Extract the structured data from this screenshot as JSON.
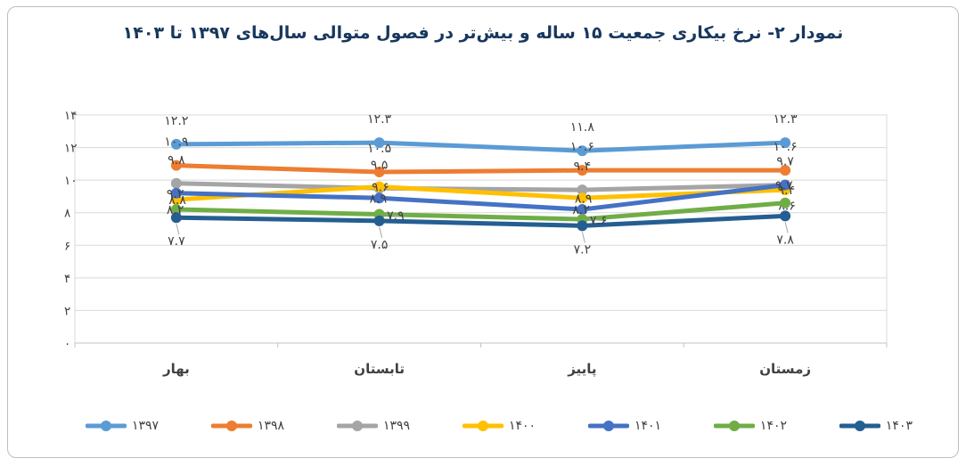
{
  "title": "نمودار ۲- نرخ بیکاری جمعیت ۱۵ ساله و بیش‌تر در فصول متوالی سال‌های ۱۳۹۷ تا ۱۴۰۳",
  "colors": {
    "title": "#17375E",
    "text": "#404040",
    "grid": "#D9D9D9",
    "axis": "#C3C3C3",
    "leader": "#A6A6A6",
    "border": "#BDBDBD",
    "background": "#FFFFFF"
  },
  "chart_data": {
    "type": "line",
    "title": "نمودار ۲- نرخ بیکاری جمعیت ۱۵ ساله و بیش‌تر در فصول متوالی سال‌های ۱۳۹۷ تا ۱۴۰۳",
    "categories": [
      "بهار",
      "تابستان",
      "پاییز",
      "زمستان"
    ],
    "xlabel": "",
    "ylabel": "",
    "ylim": [
      0,
      14
    ],
    "grid": true,
    "legend_position": "bottom",
    "y_axis": {
      "min": 0,
      "max": 14,
      "step": 2,
      "tick_labels": [
        "۰",
        "۲",
        "۴",
        "۶",
        "۸",
        "۱۰",
        "۱۲",
        "۱۴"
      ]
    },
    "series": [
      {
        "name": "۱۳۹۷",
        "color": "#5B9BD5",
        "values": [
          12.2,
          12.3,
          11.8,
          12.3
        ],
        "labels": [
          "۱۲.۲",
          "۱۲.۳",
          "۱۱.۸",
          "۱۲.۳"
        ],
        "label_placement": [
          "above",
          "above",
          "above",
          "above"
        ]
      },
      {
        "name": "۱۳۹۸",
        "color": "#ED7D31",
        "values": [
          10.9,
          10.5,
          10.6,
          10.6
        ],
        "labels": [
          "۱۰.۹",
          "۱۰.۵",
          "۱۰.۶",
          "۱۰.۶"
        ],
        "label_placement": [
          "above",
          "above",
          "above",
          "above"
        ]
      },
      {
        "name": "۱۳۹۹",
        "color": "#A5A5A5",
        "values": [
          9.8,
          9.5,
          9.4,
          9.7
        ],
        "labels": [
          "۹.۸",
          "۹.۵",
          "۹.۴",
          "۹.۷"
        ],
        "label_placement": [
          "above",
          "above",
          "above",
          "above"
        ]
      },
      {
        "name": "۱۴۰۰",
        "color": "#FFC000",
        "values": [
          8.8,
          9.6,
          8.9,
          9.4
        ],
        "labels": [
          "۸.۸",
          "۹.۶",
          "۸.۹",
          "۹.۴"
        ],
        "label_placement": [
          "right",
          "right",
          "right",
          "right"
        ]
      },
      {
        "name": "۱۴۰۱",
        "color": "#4472C4",
        "values": [
          9.2,
          8.9,
          8.2,
          9.7
        ],
        "labels": [
          "۹.۲",
          "۸.۹",
          "۸.۲",
          "۹.۷"
        ],
        "label_placement": [
          "left",
          "left",
          "left",
          "left"
        ]
      },
      {
        "name": "۱۴۰۲",
        "color": "#70AD47",
        "values": [
          8.2,
          7.9,
          7.6,
          8.6
        ],
        "labels": [
          "۸.۲",
          "۷.۹",
          "۷.۶",
          "۸.۶"
        ],
        "label_placement": [
          "left",
          "rightfar",
          "rightfar",
          "on"
        ]
      },
      {
        "name": "۱۴۰۳",
        "color": "#255E91",
        "values": [
          7.7,
          7.5,
          7.2,
          7.8
        ],
        "labels": [
          "۷.۷",
          "۷.۵",
          "۷.۲",
          "۷.۸"
        ],
        "label_placement": [
          "below",
          "below",
          "below",
          "below"
        ]
      }
    ]
  }
}
